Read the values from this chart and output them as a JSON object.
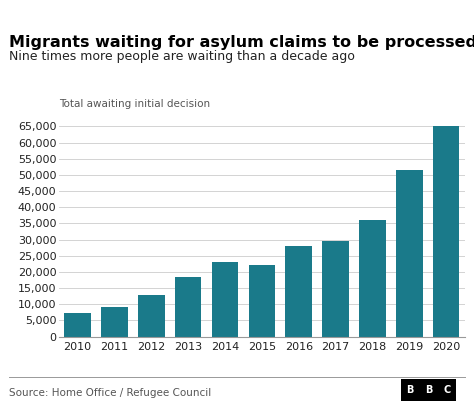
{
  "title": "Migrants waiting for asylum claims to be processed",
  "subtitle": "Nine times more people are waiting than a decade ago",
  "ylabel": "Total awaiting initial decision",
  "source": "Source: Home Office / Refugee Council",
  "years": [
    2010,
    2011,
    2012,
    2013,
    2014,
    2015,
    2016,
    2017,
    2018,
    2019,
    2020
  ],
  "values": [
    7200,
    9000,
    12800,
    18500,
    23000,
    22000,
    28000,
    29500,
    36000,
    51500,
    65000
  ],
  "bar_color": "#1a7a8a",
  "background_color": "#ffffff",
  "ylim": [
    0,
    70000
  ],
  "yticks": [
    0,
    5000,
    10000,
    15000,
    20000,
    25000,
    30000,
    35000,
    40000,
    45000,
    50000,
    55000,
    60000,
    65000
  ],
  "title_fontsize": 11.5,
  "subtitle_fontsize": 9,
  "ylabel_fontsize": 7.5,
  "tick_fontsize": 8,
  "source_fontsize": 7.5,
  "grid_color": "#cccccc",
  "text_color": "#222222",
  "label_color": "#555555"
}
